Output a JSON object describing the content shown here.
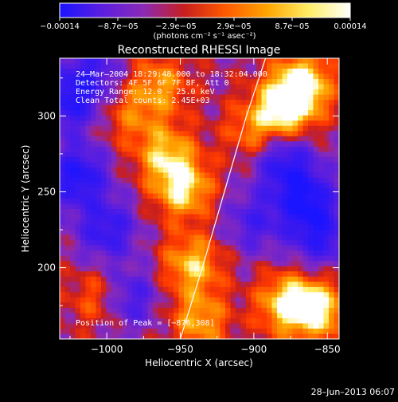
{
  "chart_data": {
    "type": "heatmap",
    "title": "Reconstructed RHESSI Image",
    "xlabel": "Heliocentric X (arcsec)",
    "ylabel": "Heliocentric Y (arcsec)",
    "xlim": [
      -1032,
      -842
    ],
    "ylim": [
      153,
      338
    ],
    "x_ticks": [
      -1000,
      -950,
      -900,
      -850
    ],
    "x_tick_labels": [
      "−1000",
      "−950",
      "−900",
      "−850"
    ],
    "y_ticks": [
      200,
      250,
      300
    ],
    "y_tick_labels": [
      "200",
      "250",
      "300"
    ],
    "colorbar": {
      "min": -0.00014,
      "max": 0.00014,
      "tick_labels": [
        "−0.00014",
        "−8.7e−05",
        "−2.9e−05",
        "2.9e−05",
        "8.7e−05",
        "0.00014"
      ],
      "units": "(photons cm⁻² s⁻¹ asec⁻²)",
      "colors": [
        "#1a14ff",
        "#5a1ee0",
        "#8a2ab8",
        "#c81e1e",
        "#ff5a00",
        "#ffa500",
        "#ffee66",
        "#ffffff"
      ]
    },
    "annotations": {
      "time_range": "24–Mar–2004 18:29:48.000 to 18:32:04.000",
      "detectors": "Detectors: 4F 5F 6F 7F 8F, Att 0",
      "energy": "Energy Range: 12.0 – 25.0 keV",
      "clean": "Clean    Total counts: 2.45E+03",
      "peak": "Position of Peak = [−876,308]"
    },
    "limb_curve": {
      "x": [
        -950,
        -935,
        -920,
        -905,
        -892
      ],
      "y": [
        153,
        200,
        250,
        300,
        338
      ]
    },
    "hotspots": [
      {
        "x": -878,
        "y": 306,
        "v": 1.0
      },
      {
        "x": -866,
        "y": 322,
        "v": 0.85
      },
      {
        "x": -877,
        "y": 176,
        "v": 0.9
      },
      {
        "x": -855,
        "y": 172,
        "v": 0.8
      },
      {
        "x": -948,
        "y": 252,
        "v": 0.85
      },
      {
        "x": -960,
        "y": 275,
        "v": 0.7
      },
      {
        "x": -942,
        "y": 202,
        "v": 0.75
      },
      {
        "x": -937,
        "y": 165,
        "v": 0.65
      },
      {
        "x": -964,
        "y": 320,
        "v": 0.6
      },
      {
        "x": -900,
        "y": 290,
        "v": 0.5
      },
      {
        "x": -985,
        "y": 300,
        "v": 0.4
      },
      {
        "x": -1005,
        "y": 180,
        "v": 0.45
      },
      {
        "x": -1020,
        "y": 260,
        "v": -0.9
      },
      {
        "x": -1025,
        "y": 310,
        "v": -0.8
      },
      {
        "x": -1000,
        "y": 225,
        "v": -0.7
      },
      {
        "x": -985,
        "y": 180,
        "v": -0.6
      },
      {
        "x": -865,
        "y": 245,
        "v": -0.9
      },
      {
        "x": -880,
        "y": 270,
        "v": -0.75
      },
      {
        "x": -855,
        "y": 220,
        "v": -0.7
      },
      {
        "x": -900,
        "y": 230,
        "v": -0.5
      },
      {
        "x": -1010,
        "y": 330,
        "v": -0.5
      }
    ]
  },
  "footer": {
    "date": "28–Jun–2013 06:07"
  }
}
